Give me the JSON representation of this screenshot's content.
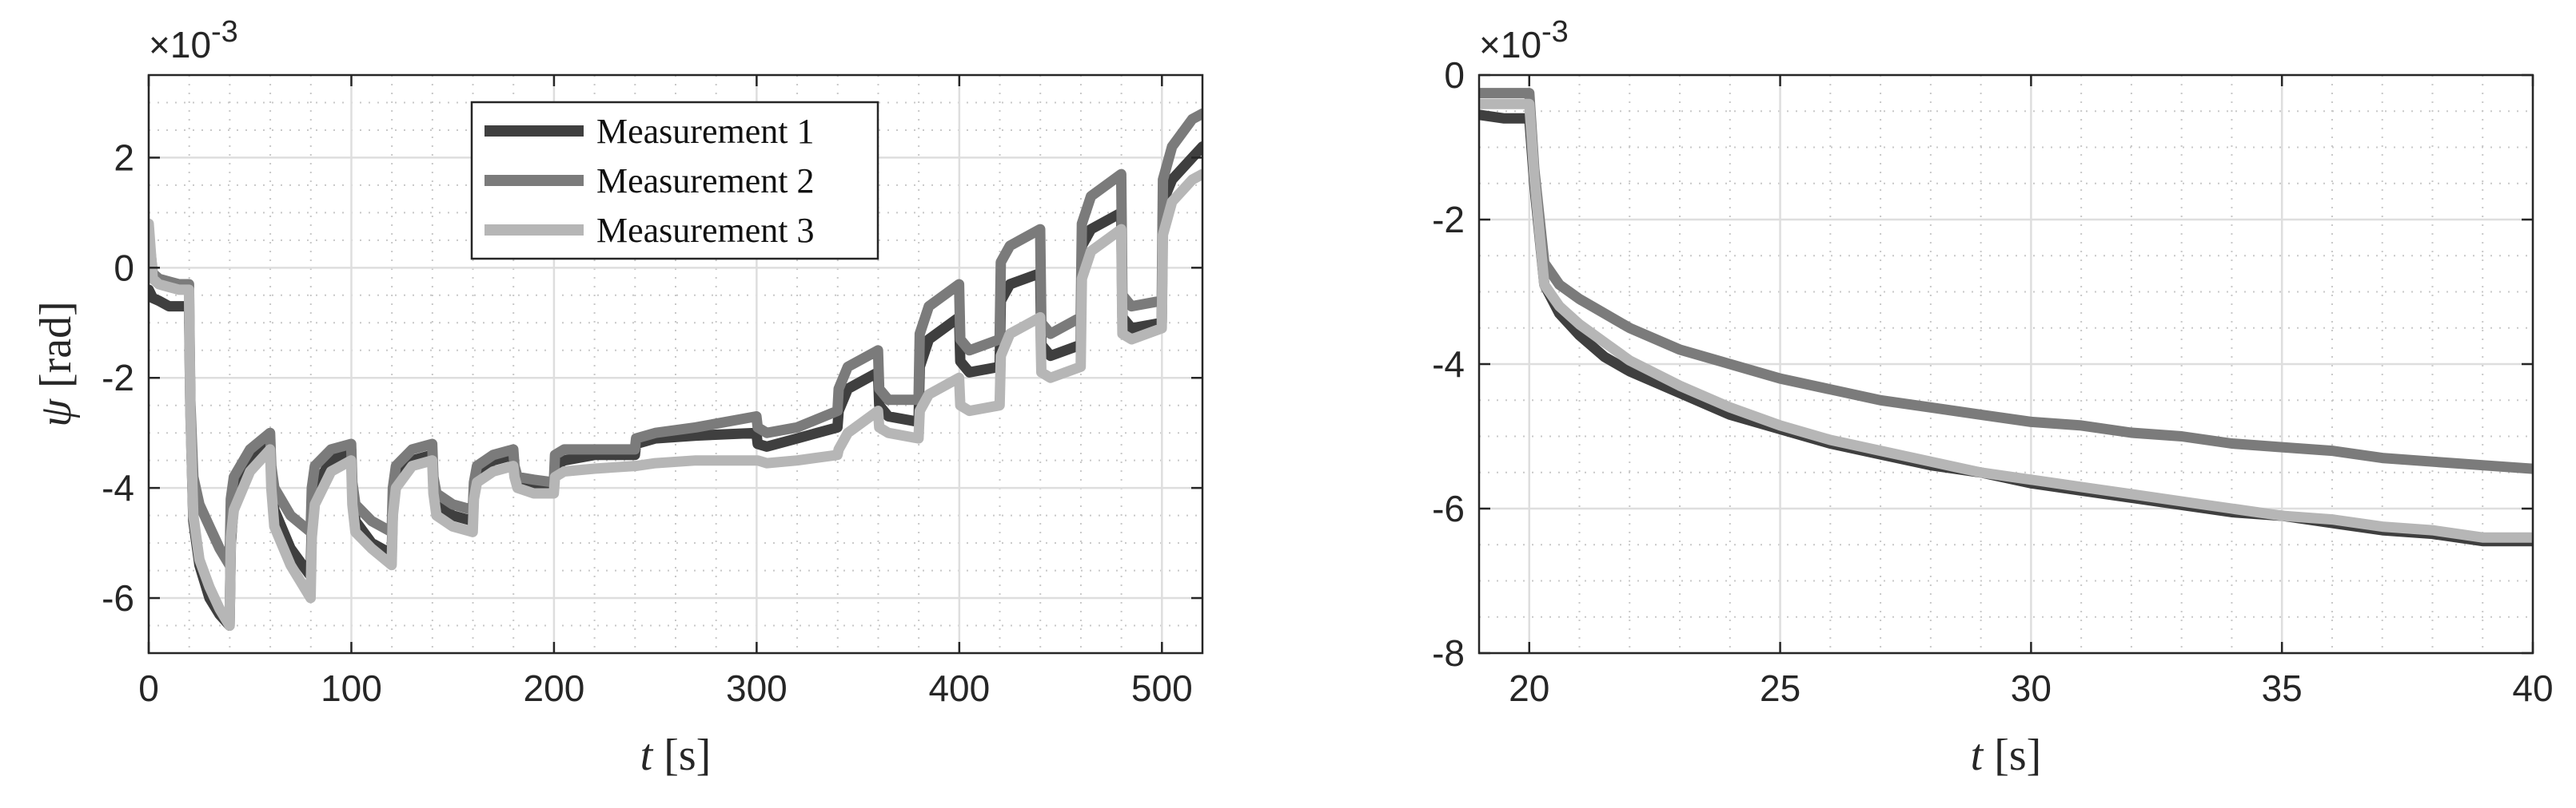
{
  "chart_data": [
    {
      "type": "line",
      "xlabel_var": "t",
      "xlabel_unit": "[s]",
      "ylabel_var": "ψ",
      "ylabel_unit": "[rad]",
      "y_exponent": "×10",
      "y_exponent_power": "-3",
      "xlim": [
        0,
        520
      ],
      "ylim": [
        -7,
        3.5
      ],
      "xticks": [
        0,
        100,
        200,
        300,
        400,
        500
      ],
      "xtick_labels": [
        "0",
        "100",
        "200",
        "300",
        "400",
        "500"
      ],
      "yticks": [
        -6,
        -4,
        -2,
        0,
        2
      ],
      "ytick_labels": [
        "-6",
        "-4",
        "-2",
        "0",
        "2"
      ],
      "grid": true,
      "minor_grid": true,
      "legend": "top-center",
      "colors": [
        "#3f3f3f",
        "#7b7b7b",
        "#b6b6b6"
      ],
      "series": [
        {
          "name": "Measurement 1",
          "x": [
            0,
            2,
            5,
            10,
            15,
            19.9,
            20.5,
            22,
            25,
            30,
            35,
            39.9,
            40.5,
            42,
            50,
            59.9,
            60.5,
            62,
            70,
            79.9,
            80.5,
            82,
            90,
            99.9,
            100.5,
            102,
            110,
            119.9,
            120.5,
            122,
            130,
            139.9,
            140.5,
            142,
            150,
            159.9,
            160.5,
            162,
            170,
            179.9,
            180.5,
            182,
            190,
            199.9,
            200.5,
            205,
            220,
            239.9,
            240.5,
            250,
            270,
            299.9,
            300.5,
            305,
            320,
            339.9,
            340.5,
            345,
            359.9,
            360.5,
            365,
            379.9,
            380.5,
            385,
            399.9,
            400.5,
            405,
            419.9,
            420.5,
            425,
            439.9,
            440.5,
            445,
            459.9,
            460.5,
            465,
            479.9,
            480.5,
            485,
            499.9,
            500.5,
            505,
            515,
            520
          ],
          "y": [
            -0.4,
            -0.55,
            -0.6,
            -0.7,
            -0.7,
            -0.7,
            -2.5,
            -4.6,
            -5.4,
            -6.0,
            -6.3,
            -6.5,
            -5.0,
            -4.3,
            -3.5,
            -3.1,
            -3.8,
            -4.4,
            -5.1,
            -5.6,
            -4.6,
            -4.0,
            -3.5,
            -3.3,
            -4.1,
            -4.6,
            -5.0,
            -5.2,
            -4.4,
            -3.9,
            -3.5,
            -3.4,
            -3.9,
            -4.3,
            -4.5,
            -4.6,
            -4.1,
            -3.8,
            -3.5,
            -3.4,
            -3.7,
            -3.9,
            -4.0,
            -4.0,
            -3.6,
            -3.5,
            -3.4,
            -3.4,
            -3.2,
            -3.1,
            -3.05,
            -3.0,
            -3.2,
            -3.25,
            -3.1,
            -2.9,
            -2.6,
            -2.2,
            -1.9,
            -2.5,
            -2.7,
            -2.8,
            -1.8,
            -1.3,
            -0.9,
            -1.7,
            -1.9,
            -1.8,
            -0.6,
            -0.3,
            -0.1,
            -1.4,
            -1.6,
            -1.4,
            0.4,
            0.7,
            1.0,
            -0.9,
            -1.1,
            -1.0,
            1.2,
            1.6,
            2.0,
            2.2
          ]
        },
        {
          "name": "Measurement 2",
          "x": [
            0,
            2,
            5,
            10,
            15,
            19.9,
            20.5,
            22,
            25,
            30,
            35,
            39.9,
            40.5,
            42,
            50,
            59.9,
            60.5,
            62,
            70,
            79.9,
            80.5,
            82,
            90,
            99.9,
            100.5,
            102,
            110,
            119.9,
            120.5,
            122,
            130,
            139.9,
            140.5,
            142,
            150,
            159.9,
            160.5,
            162,
            170,
            179.9,
            180.5,
            182,
            190,
            199.9,
            200.5,
            205,
            220,
            239.9,
            240.5,
            250,
            270,
            299.9,
            300.5,
            305,
            320,
            339.9,
            340.5,
            345,
            359.9,
            360.5,
            365,
            379.9,
            380.5,
            385,
            399.9,
            400.5,
            405,
            419.9,
            420.5,
            425,
            439.9,
            440.5,
            445,
            459.9,
            460.5,
            465,
            479.9,
            480.5,
            485,
            499.9,
            500.5,
            505,
            515,
            520
          ],
          "y": [
            0.6,
            -0.1,
            -0.2,
            -0.25,
            -0.3,
            -0.3,
            -2.4,
            -3.8,
            -4.3,
            -4.7,
            -5.1,
            -5.4,
            -4.2,
            -3.8,
            -3.3,
            -3.0,
            -3.6,
            -4.0,
            -4.5,
            -4.8,
            -4.0,
            -3.6,
            -3.3,
            -3.2,
            -3.9,
            -4.3,
            -4.6,
            -4.8,
            -4.0,
            -3.6,
            -3.3,
            -3.2,
            -3.8,
            -4.1,
            -4.3,
            -4.4,
            -3.9,
            -3.6,
            -3.4,
            -3.3,
            -3.6,
            -3.8,
            -3.85,
            -3.9,
            -3.4,
            -3.3,
            -3.3,
            -3.3,
            -3.1,
            -3.0,
            -2.9,
            -2.7,
            -2.9,
            -3.0,
            -2.9,
            -2.6,
            -2.2,
            -1.8,
            -1.5,
            -2.2,
            -2.4,
            -2.4,
            -1.2,
            -0.7,
            -0.3,
            -1.3,
            -1.5,
            -1.3,
            0.1,
            0.4,
            0.7,
            -1.0,
            -1.2,
            -0.9,
            0.8,
            1.3,
            1.7,
            -0.5,
            -0.7,
            -0.6,
            1.6,
            2.2,
            2.7,
            2.8
          ]
        },
        {
          "name": "Measurement 3",
          "x": [
            0,
            2,
            5,
            10,
            15,
            19.9,
            20.5,
            22,
            25,
            30,
            35,
            39.9,
            40.5,
            42,
            50,
            59.9,
            60.5,
            62,
            70,
            79.9,
            80.5,
            82,
            90,
            99.9,
            100.5,
            102,
            110,
            119.9,
            120.5,
            122,
            130,
            139.9,
            140.5,
            142,
            150,
            159.9,
            160.5,
            162,
            170,
            179.9,
            180.5,
            182,
            190,
            199.9,
            200.5,
            205,
            220,
            239.9,
            240.5,
            250,
            270,
            299.9,
            300.5,
            305,
            320,
            339.9,
            340.5,
            345,
            359.9,
            360.5,
            365,
            379.9,
            380.5,
            385,
            399.9,
            400.5,
            405,
            419.9,
            420.5,
            425,
            439.9,
            440.5,
            445,
            459.9,
            460.5,
            465,
            479.9,
            480.5,
            485,
            499.9,
            500.5,
            505,
            515,
            520
          ],
          "y": [
            0.8,
            -0.2,
            -0.3,
            -0.35,
            -0.4,
            -0.4,
            -2.6,
            -4.5,
            -5.3,
            -5.8,
            -6.2,
            -6.5,
            -4.9,
            -4.4,
            -3.7,
            -3.3,
            -4.0,
            -4.7,
            -5.4,
            -6.0,
            -4.9,
            -4.3,
            -3.7,
            -3.5,
            -4.3,
            -4.8,
            -5.1,
            -5.4,
            -4.5,
            -4.0,
            -3.6,
            -3.5,
            -4.1,
            -4.5,
            -4.7,
            -4.8,
            -4.2,
            -3.9,
            -3.7,
            -3.6,
            -3.8,
            -4.0,
            -4.1,
            -4.1,
            -3.8,
            -3.7,
            -3.65,
            -3.6,
            -3.6,
            -3.55,
            -3.5,
            -3.5,
            -3.5,
            -3.55,
            -3.5,
            -3.4,
            -3.3,
            -3.0,
            -2.6,
            -2.9,
            -3.0,
            -3.1,
            -2.6,
            -2.3,
            -2.0,
            -2.5,
            -2.6,
            -2.5,
            -1.6,
            -1.2,
            -0.9,
            -1.9,
            -2.0,
            -1.8,
            -0.2,
            0.3,
            0.7,
            -1.2,
            -1.3,
            -1.1,
            0.6,
            1.2,
            1.6,
            1.7
          ]
        }
      ]
    },
    {
      "type": "line",
      "xlabel_var": "t",
      "xlabel_unit": "[s]",
      "y_exponent": "×10",
      "y_exponent_power": "-3",
      "xlim": [
        19,
        40
      ],
      "ylim": [
        -8,
        0
      ],
      "xticks": [
        20,
        25,
        30,
        35,
        40
      ],
      "xtick_labels": [
        "20",
        "25",
        "30",
        "35",
        "40"
      ],
      "yticks": [
        -8,
        -6,
        -4,
        -2,
        0
      ],
      "ytick_labels": [
        "-8",
        "-6",
        "-4",
        "-2",
        "0"
      ],
      "grid": true,
      "minor_grid": true,
      "colors": [
        "#3f3f3f",
        "#7b7b7b",
        "#b6b6b6"
      ],
      "series": [
        {
          "name": "Measurement 1",
          "x": [
            19,
            19.5,
            20,
            20.1,
            20.3,
            20.6,
            21,
            21.5,
            22,
            23,
            24,
            25,
            26,
            27,
            28,
            29,
            30,
            31,
            32,
            33,
            34,
            35,
            36,
            37,
            38,
            39,
            40
          ],
          "y": [
            -0.55,
            -0.6,
            -0.6,
            -1.5,
            -2.9,
            -3.3,
            -3.6,
            -3.9,
            -4.1,
            -4.4,
            -4.7,
            -4.9,
            -5.1,
            -5.25,
            -5.4,
            -5.5,
            -5.65,
            -5.75,
            -5.85,
            -5.95,
            -6.05,
            -6.1,
            -6.2,
            -6.3,
            -6.35,
            -6.45,
            -6.45
          ]
        },
        {
          "name": "Measurement 2",
          "x": [
            19,
            19.5,
            20,
            20.1,
            20.3,
            20.6,
            21,
            21.5,
            22,
            23,
            24,
            25,
            26,
            27,
            28,
            29,
            30,
            31,
            32,
            33,
            34,
            35,
            36,
            37,
            38,
            39,
            40
          ],
          "y": [
            -0.25,
            -0.25,
            -0.25,
            -1.3,
            -2.6,
            -2.9,
            -3.1,
            -3.3,
            -3.5,
            -3.8,
            -4.0,
            -4.2,
            -4.35,
            -4.5,
            -4.6,
            -4.7,
            -4.8,
            -4.85,
            -4.95,
            -5.0,
            -5.1,
            -5.15,
            -5.2,
            -5.3,
            -5.35,
            -5.4,
            -5.45
          ]
        },
        {
          "name": "Measurement 3",
          "x": [
            19,
            19.5,
            20,
            20.1,
            20.3,
            20.6,
            21,
            21.5,
            22,
            23,
            24,
            25,
            26,
            27,
            28,
            29,
            30,
            31,
            32,
            33,
            34,
            35,
            36,
            37,
            38,
            39,
            40
          ],
          "y": [
            -0.4,
            -0.4,
            -0.4,
            -1.4,
            -2.9,
            -3.2,
            -3.45,
            -3.7,
            -3.95,
            -4.3,
            -4.6,
            -4.85,
            -5.05,
            -5.2,
            -5.35,
            -5.5,
            -5.6,
            -5.7,
            -5.8,
            -5.9,
            -6.0,
            -6.1,
            -6.15,
            -6.25,
            -6.3,
            -6.4,
            -6.4
          ]
        }
      ]
    }
  ]
}
